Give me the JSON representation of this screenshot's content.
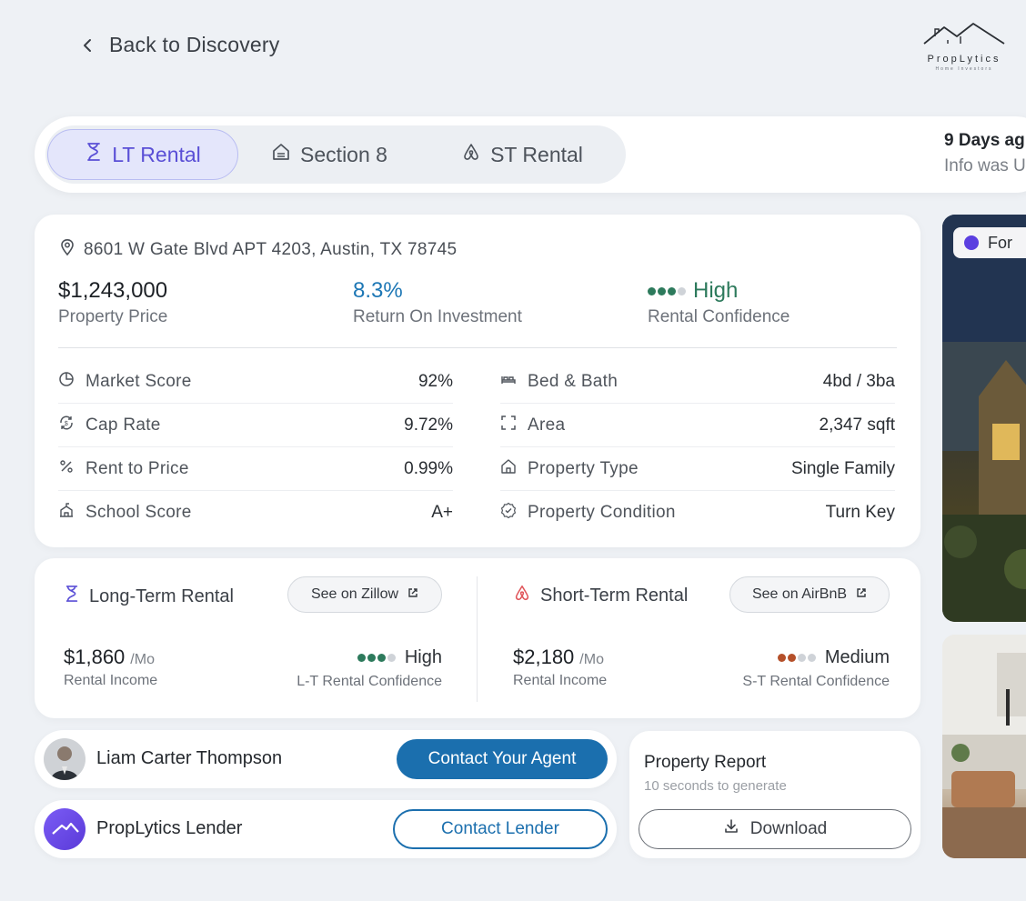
{
  "header": {
    "back_label": "Back to Discovery",
    "logo_brand": "PropLytics",
    "logo_sub": "Home Investors"
  },
  "tabs": [
    {
      "label": "LT Rental",
      "active": true
    },
    {
      "label": "Section 8",
      "active": false
    },
    {
      "label": "ST Rental",
      "active": false
    }
  ],
  "updated": {
    "line1": "9 Days ag",
    "line2": "Info was U"
  },
  "property": {
    "address": "8601 W Gate Blvd APT 4203, Austin, TX 78745",
    "price": "$1,243,000",
    "price_label": "Property Price",
    "roi": "8.3%",
    "roi_label": "Return On Investment",
    "confidence": "High",
    "confidence_label": "Rental Confidence"
  },
  "metrics_left": [
    {
      "icon": "pie-chart-icon",
      "label": "Market Score",
      "value": "92%"
    },
    {
      "icon": "cap-rate-icon",
      "label": "Cap Rate",
      "value": "9.72%"
    },
    {
      "icon": "percent-icon",
      "label": "Rent to Price",
      "value": "0.99%"
    },
    {
      "icon": "school-icon",
      "label": "School Score",
      "value": "A+"
    }
  ],
  "metrics_right": [
    {
      "icon": "bed-icon",
      "label": "Bed & Bath",
      "value": "4bd / 3ba"
    },
    {
      "icon": "area-icon",
      "label": "Area",
      "value": "2,347 sqft"
    },
    {
      "icon": "house-icon",
      "label": "Property Type",
      "value": "Single Family"
    },
    {
      "icon": "check-badge-icon",
      "label": "Property Condition",
      "value": "Turn Key"
    }
  ],
  "long_term": {
    "title": "Long-Term Rental",
    "link": "See on Zillow",
    "income": "$1,860",
    "per": "/Mo",
    "income_label": "Rental Income",
    "confidence": "High",
    "confidence_label": "L-T Rental Confidence"
  },
  "short_term": {
    "title": "Short-Term Rental",
    "link": "See on AirBnB",
    "income": "$2,180",
    "per": "/Mo",
    "income_label": "Rental Income",
    "confidence": "Medium",
    "confidence_label": "S-T Rental Confidence"
  },
  "agent": {
    "name": "Liam Carter Thompson",
    "button": "Contact Your Agent"
  },
  "lender": {
    "name": "PropLytics Lender",
    "button": "Contact Lender"
  },
  "report": {
    "title": "Property Report",
    "subtitle": "10 seconds to generate",
    "button": "Download"
  },
  "listing_badge": "For",
  "colors": {
    "accent": "#1b6fae",
    "tab_active": "#5a4fd6",
    "high": "#2d7a5c",
    "medium": "#b5502a"
  }
}
